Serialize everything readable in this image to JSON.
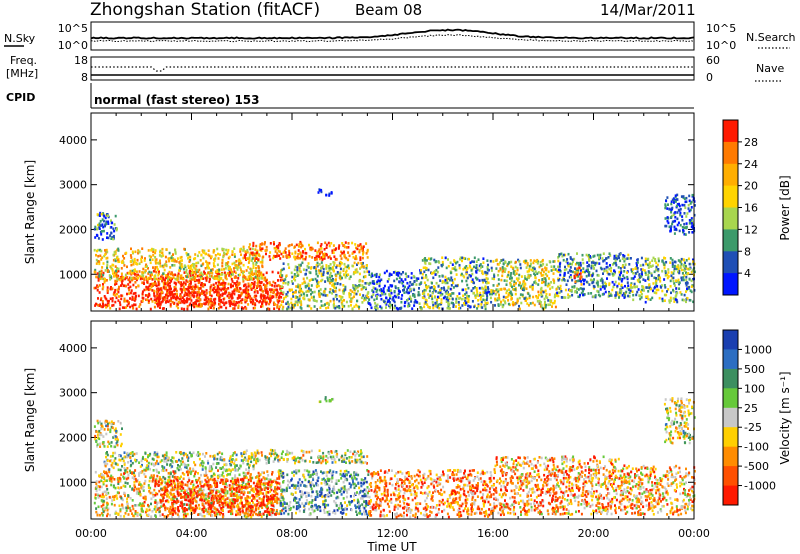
{
  "header": {
    "title": "Zhongshan Station (fitACF)",
    "beam": "Beam 08",
    "date": "14/Mar/2011"
  },
  "noise_panel": {
    "left_label": "N.Sky",
    "left_top_tick": "10^5",
    "left_bottom_tick": "10^0",
    "right_top_tick": "10^5",
    "right_bottom_tick": "10^0",
    "right_label": "N.Search"
  },
  "freq_panel": {
    "left_label_1": "Freq.",
    "left_label_2": "[MHz]",
    "left_top_tick": "18",
    "left_bottom_tick": "8",
    "right_top_tick": "60",
    "right_bottom_tick": "0",
    "right_label": "Nave"
  },
  "cpid": {
    "label": "CPID",
    "mode": "normal (fast stereo) 153"
  },
  "x_axis": {
    "label": "Time UT",
    "ticks": [
      "00:00",
      "04:00",
      "08:00",
      "12:00",
      "16:00",
      "20:00",
      "00:00"
    ]
  },
  "power_colorbar": {
    "label": "Power [dB]",
    "ticks": [
      "28",
      "24",
      "20",
      "16",
      "12",
      "8",
      "4"
    ],
    "colors": [
      "#ff1a00",
      "#ff7a00",
      "#ffae00",
      "#ffd400",
      "#a8d64f",
      "#3c9a6b",
      "#1f4fb5",
      "#0016ff"
    ]
  },
  "velocity_colorbar": {
    "label": "Velocity [m s⁻¹]",
    "ticks": [
      "1000",
      "500",
      "100",
      "25",
      "-25",
      "-100",
      "-500",
      "-1000"
    ],
    "colors": [
      "#1a3fb0",
      "#2c6ec2",
      "#3c8f60",
      "#66c93a",
      "#c8c8c8",
      "#ffcf00",
      "#ff8c00",
      "#ff5000",
      "#ff1a00"
    ]
  },
  "chart_data": [
    {
      "type": "heatmap",
      "title": "",
      "xlabel": "",
      "ylabel": "Slant Range [km]",
      "xlim_hours": [
        0,
        24
      ],
      "ylim": [
        180,
        4600
      ],
      "yticks": [
        "4000",
        "3000",
        "2000",
        "1000"
      ],
      "value": "Power [dB]",
      "regions": [
        {
          "t0": 0.1,
          "t1": 7.6,
          "r0": 250,
          "r1": 1100,
          "level": 0.95
        },
        {
          "t0": 2.5,
          "t1": 7.2,
          "r0": 350,
          "r1": 850,
          "level": 1.0
        },
        {
          "t0": 0.1,
          "t1": 6.8,
          "r0": 900,
          "r1": 1600,
          "level": 0.6
        },
        {
          "t0": 0.1,
          "t1": 1.0,
          "r0": 1800,
          "r1": 2400,
          "level": 0.25
        },
        {
          "t0": 6.0,
          "t1": 11.0,
          "r0": 1350,
          "r1": 1750,
          "level": 0.85
        },
        {
          "t0": 7.5,
          "t1": 11.0,
          "r0": 250,
          "r1": 1300,
          "level": 0.45
        },
        {
          "t0": 9.0,
          "t1": 9.6,
          "r0": 2780,
          "r1": 2920,
          "level": 0.15
        },
        {
          "t0": 11.0,
          "t1": 13.0,
          "r0": 250,
          "r1": 1100,
          "level": 0.2
        },
        {
          "t0": 13.0,
          "t1": 16.0,
          "r0": 250,
          "r1": 1400,
          "level": 0.35
        },
        {
          "t0": 16.0,
          "t1": 18.5,
          "r0": 250,
          "r1": 1350,
          "level": 0.5
        },
        {
          "t0": 18.5,
          "t1": 21.5,
          "r0": 500,
          "r1": 1500,
          "level": 0.3
        },
        {
          "t0": 19.2,
          "t1": 19.5,
          "r0": 800,
          "r1": 1200,
          "level": 0.95
        },
        {
          "t0": 21.5,
          "t1": 24.0,
          "r0": 400,
          "r1": 1400,
          "level": 0.35
        },
        {
          "t0": 22.8,
          "t1": 24.0,
          "r0": 1900,
          "r1": 2800,
          "level": 0.15
        }
      ]
    },
    {
      "type": "heatmap",
      "title": "",
      "xlabel": "Time UT",
      "ylabel": "Slant Range [km]",
      "xlim_hours": [
        0,
        24
      ],
      "ylim": [
        180,
        4600
      ],
      "yticks": [
        "4000",
        "3000",
        "2000",
        "1000"
      ],
      "value": "Velocity [m s^-1]",
      "regions": [
        {
          "t0": 0.1,
          "t1": 1.2,
          "r0": 1800,
          "r1": 2400,
          "level": 0.5
        },
        {
          "t0": 0.1,
          "t1": 7.6,
          "r0": 250,
          "r1": 1300,
          "level": 0.4
        },
        {
          "t0": 2.5,
          "t1": 7.5,
          "r0": 300,
          "r1": 1100,
          "level": 0.1
        },
        {
          "t0": 0.5,
          "t1": 6.5,
          "r0": 1300,
          "r1": 1700,
          "level": 0.55
        },
        {
          "t0": 6.0,
          "t1": 11.0,
          "r0": 1450,
          "r1": 1750,
          "level": 0.5
        },
        {
          "t0": 7.5,
          "t1": 11.0,
          "r0": 300,
          "r1": 1300,
          "level": 0.7
        },
        {
          "t0": 9.0,
          "t1": 9.6,
          "r0": 2800,
          "r1": 2950,
          "level": 0.5
        },
        {
          "t0": 11.0,
          "t1": 16.0,
          "r0": 250,
          "r1": 1300,
          "level": 0.25
        },
        {
          "t0": 16.0,
          "t1": 21.0,
          "r0": 300,
          "r1": 1600,
          "level": 0.3
        },
        {
          "t0": 21.0,
          "t1": 24.0,
          "r0": 300,
          "r1": 1400,
          "level": 0.35
        },
        {
          "t0": 22.8,
          "t1": 24.0,
          "r0": 1900,
          "r1": 2900,
          "level": 0.5
        }
      ]
    }
  ]
}
